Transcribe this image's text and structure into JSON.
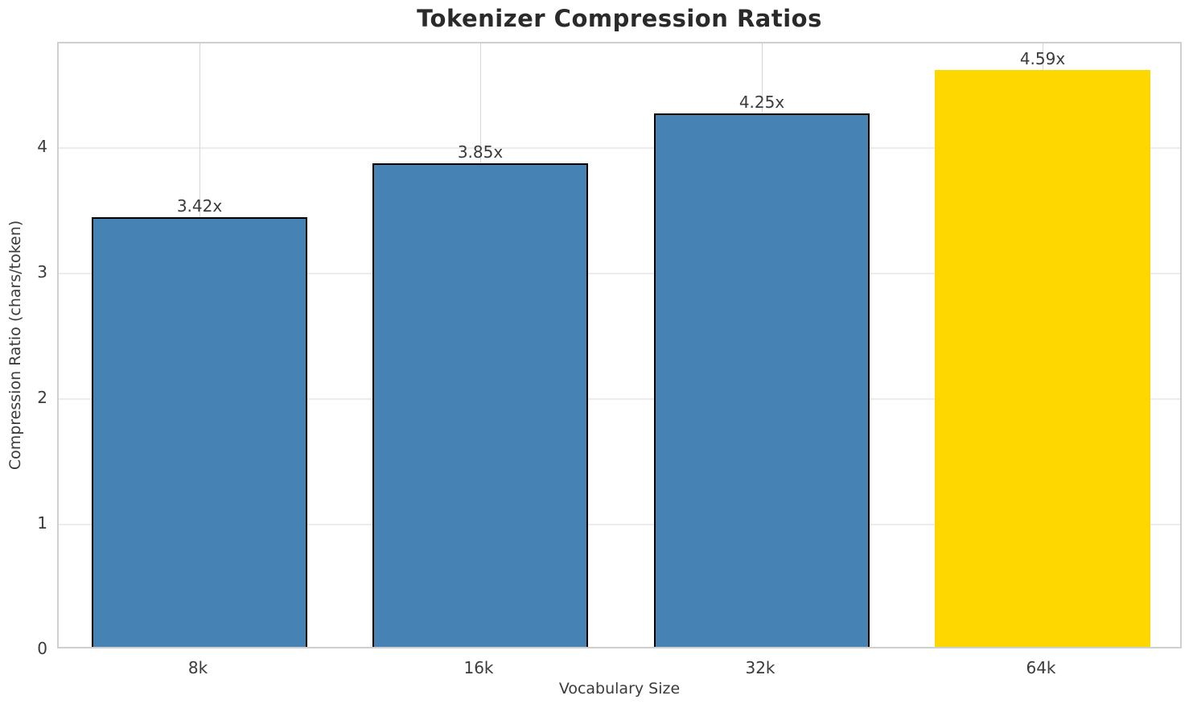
{
  "chart_data": {
    "type": "bar",
    "title": "Tokenizer Compression Ratios",
    "xlabel": "Vocabulary Size",
    "ylabel": "Compression Ratio (chars/token)",
    "categories": [
      "8k",
      "16k",
      "32k",
      "64k"
    ],
    "values": [
      3.42,
      3.85,
      4.25,
      4.59
    ],
    "bar_labels": [
      "3.42x",
      "3.85x",
      "4.25x",
      "4.59x"
    ],
    "bar_colors": [
      "#4682B4",
      "#4682B4",
      "#4682B4",
      "#FFD700"
    ],
    "bar_edges": [
      true,
      true,
      true,
      false
    ],
    "edge_color": "#000000",
    "yticks": [
      0,
      1,
      2,
      3,
      4
    ],
    "ylim": [
      0,
      4.83
    ],
    "grid": "on",
    "legend": "none"
  }
}
